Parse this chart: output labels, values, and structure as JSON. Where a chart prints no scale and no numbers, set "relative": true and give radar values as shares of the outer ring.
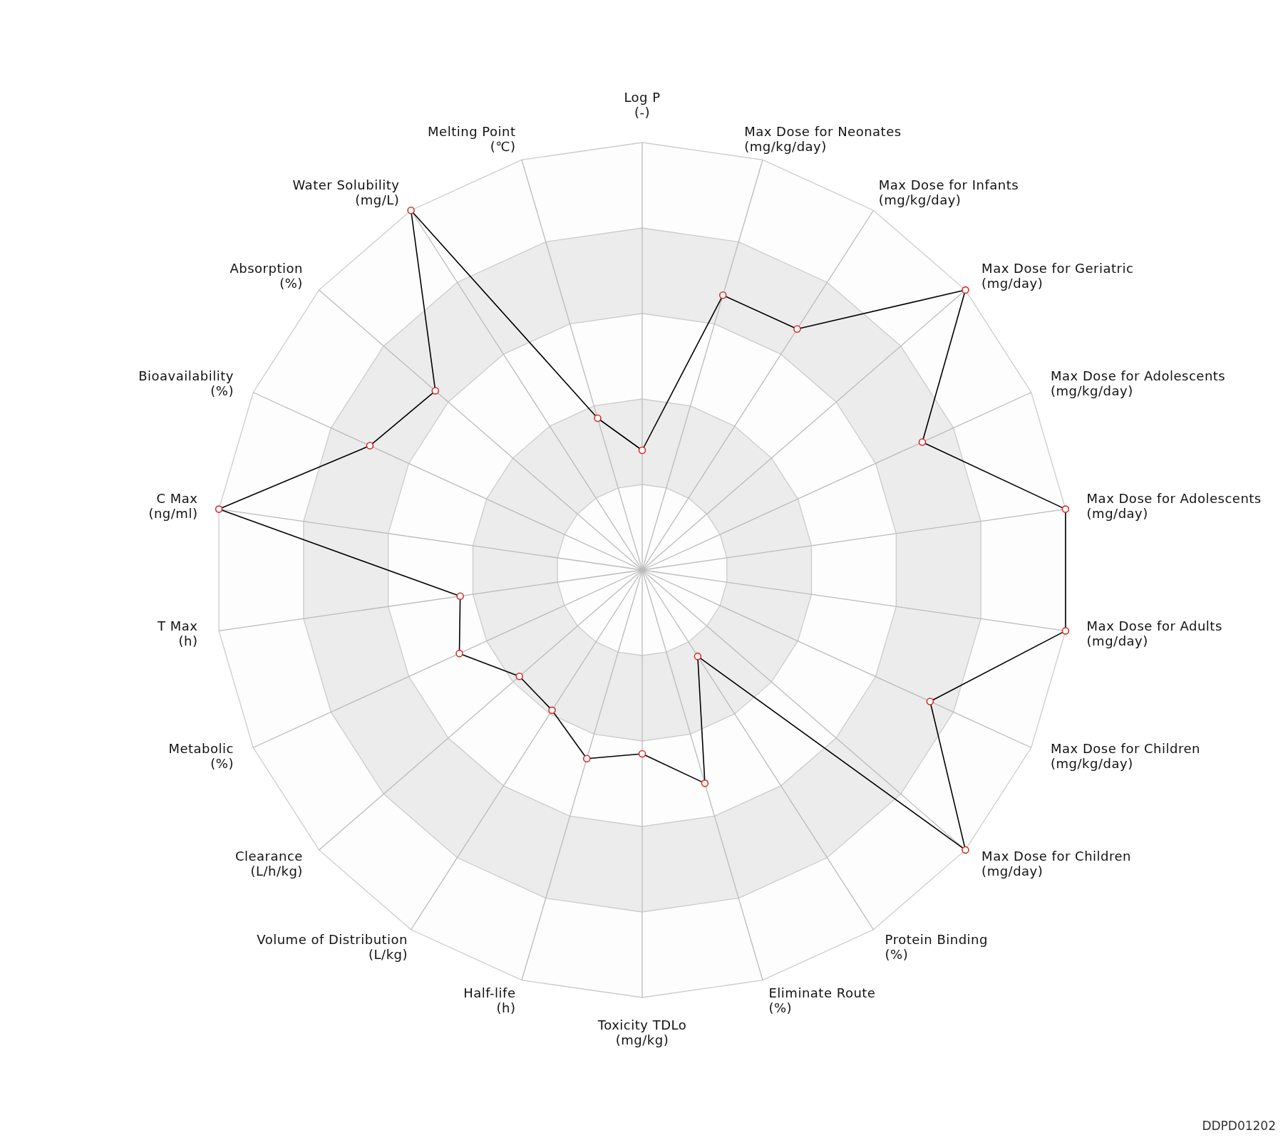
{
  "chart_data": {
    "type": "radar",
    "relative": true,
    "grid": true,
    "marker": "circle",
    "categories": [
      "Log P\n(-)",
      "Max Dose for Neonates\n(mg/kg/day)",
      "Max Dose for Infants\n(mg/kg/day)",
      "Max Dose for Geriatric\n(mg/day)",
      "Max Dose for Adolescents\n(mg/kg/day)",
      "Max Dose for Adolescents\n(mg/day)",
      "Max Dose for Adults\n(mg/day)",
      "Max Dose for Children\n(mg/kg/day)",
      "Max Dose for Children\n(mg/day)",
      "Protein Binding\n(%)",
      "Eliminate Route\n(%)",
      "Toxicity TDLo\n(mg/kg)",
      "Half-life\n(h)",
      "Volume of Distribution\n(L/kg)",
      "Clearance\n(L/h/kg)",
      "Metabolic\n(%)",
      "T Max\n(h)",
      "C Max\n(ng/ml)",
      "Bioavailability\n(%)",
      "Absorption\n(%)",
      "Water Solubility\n(mg/L)",
      "Melting Point\n(℃)"
    ],
    "series": [
      {
        "color": "#000000",
        "values": [
          0.28,
          0.67,
          0.67,
          1,
          0.72,
          1,
          1,
          0.74,
          1,
          0.24,
          0.52,
          0.43,
          0.46,
          0.39,
          0.38,
          0.47,
          0.43,
          1,
          0.7,
          0.64,
          1,
          0.37
        ]
      }
    ],
    "annotations": [
      "DDPD01202"
    ]
  }
}
